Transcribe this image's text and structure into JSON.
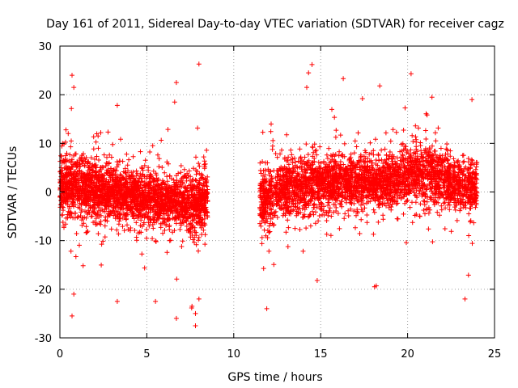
{
  "chart_data": {
    "type": "scatter",
    "title": "Day 161 of 2011, Sidereal Day-to-day VTEC variation (SDTVAR) for receiver cagz",
    "xlabel": "GPS time / hours",
    "ylabel": "SDTVAR / TECUs",
    "xlim": [
      0,
      25
    ],
    "ylim": [
      -30,
      30
    ],
    "xticks": [
      0,
      5,
      10,
      15,
      20,
      25
    ],
    "yticks": [
      -30,
      -20,
      -10,
      0,
      10,
      20,
      30
    ],
    "grid": true,
    "marker": "+",
    "color": "#ff0000",
    "series": [
      {
        "name": "SDTVAR",
        "data_gap_hours": [
          8.5,
          11.5
        ],
        "segments": [
          {
            "x": [
              0.0,
              1.0,
              2.0,
              3.0,
              4.0,
              5.0,
              6.0,
              7.0,
              8.0,
              8.5
            ],
            "center": [
              1.5,
              1.0,
              0.5,
              0.0,
              -0.8,
              -1.5,
              -2.0,
              -2.5,
              -2.5,
              -1.0
            ],
            "spread": [
              6,
              6,
              6,
              5,
              5,
              5,
              5,
              5,
              6,
              6
            ],
            "count": 2600
          },
          {
            "x": [
              11.5,
              12.5,
              13.5,
              14.5,
              15.5,
              16.5,
              17.5,
              18.5,
              19.5,
              20.5,
              21.5,
              22.5,
              23.5,
              24.0
            ],
            "center": [
              -2.0,
              0.5,
              1.0,
              1.5,
              2.0,
              2.0,
              2.0,
              1.5,
              3.0,
              4.0,
              3.0,
              2.0,
              1.0,
              1.0
            ],
            "spread": [
              6,
              6,
              6,
              6,
              5,
              5,
              5,
              5,
              5,
              6,
              6,
              5,
              5,
              5
            ],
            "count": 3200
          }
        ],
        "outliers": [
          [
            0.7,
            24
          ],
          [
            0.8,
            21.5
          ],
          [
            0.7,
            -25.5
          ],
          [
            0.8,
            -21
          ],
          [
            3.3,
            17.8
          ],
          [
            3.3,
            -22.5
          ],
          [
            5.5,
            -22.5
          ],
          [
            6.7,
            22.5
          ],
          [
            6.6,
            18.5
          ],
          [
            6.7,
            -26
          ],
          [
            7.6,
            -23.5
          ],
          [
            7.8,
            -25
          ],
          [
            7.8,
            -27.5
          ],
          [
            8.0,
            26.3
          ],
          [
            8.0,
            -22
          ],
          [
            11.9,
            -24
          ],
          [
            14.5,
            26.2
          ],
          [
            14.3,
            24.5
          ],
          [
            14.2,
            21.5
          ],
          [
            14.8,
            -18.2
          ],
          [
            16.3,
            23.3
          ],
          [
            17.4,
            19.2
          ],
          [
            18.4,
            21.8
          ],
          [
            18.2,
            -19.3
          ],
          [
            18.1,
            -19.5
          ],
          [
            20.2,
            24.3
          ],
          [
            21.4,
            19.5
          ],
          [
            23.3,
            -22
          ],
          [
            23.5,
            -17.1
          ],
          [
            23.7,
            19
          ]
        ]
      }
    ]
  }
}
